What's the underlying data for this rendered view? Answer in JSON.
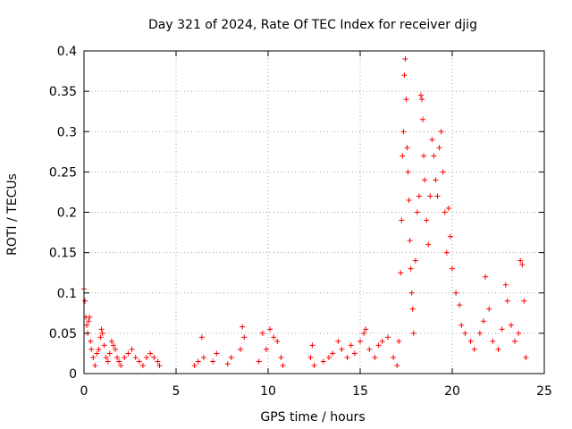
{
  "chart_data": {
    "type": "scatter",
    "title": "Day 321 of 2024, Rate Of TEC Index for receiver djig",
    "xlabel": "GPS time / hours",
    "ylabel": "ROTI / TECUs",
    "xlim": [
      0,
      25
    ],
    "ylim": [
      0,
      0.4
    ],
    "xticks": [
      0,
      5,
      10,
      15,
      20,
      25
    ],
    "yticks": [
      0,
      0.05,
      0.1,
      0.15,
      0.2,
      0.25,
      0.3,
      0.35,
      0.4
    ],
    "xtick_labels": [
      "0",
      "5",
      "10",
      "15",
      "20",
      "25"
    ],
    "ytick_labels": [
      "0",
      "0.05",
      "0.1",
      "0.15",
      "0.2",
      "0.25",
      "0.3",
      "0.35",
      "0.4"
    ],
    "grid": true,
    "marker": "+",
    "color": "#ff0000",
    "series": [
      {
        "name": "ROTI",
        "points": [
          [
            0.0,
            0.105
          ],
          [
            0.05,
            0.09
          ],
          [
            0.1,
            0.07
          ],
          [
            0.15,
            0.06
          ],
          [
            0.2,
            0.05
          ],
          [
            0.25,
            0.065
          ],
          [
            0.3,
            0.07
          ],
          [
            0.35,
            0.04
          ],
          [
            0.4,
            0.03
          ],
          [
            0.5,
            0.02
          ],
          [
            0.6,
            0.01
          ],
          [
            0.7,
            0.025
          ],
          [
            0.8,
            0.03
          ],
          [
            0.9,
            0.045
          ],
          [
            0.95,
            0.055
          ],
          [
            1.0,
            0.05
          ],
          [
            1.1,
            0.035
          ],
          [
            1.2,
            0.02
          ],
          [
            1.3,
            0.015
          ],
          [
            1.4,
            0.025
          ],
          [
            1.5,
            0.04
          ],
          [
            1.6,
            0.035
          ],
          [
            1.7,
            0.03
          ],
          [
            1.8,
            0.02
          ],
          [
            1.9,
            0.015
          ],
          [
            2.0,
            0.01
          ],
          [
            2.2,
            0.02
          ],
          [
            2.4,
            0.025
          ],
          [
            2.6,
            0.03
          ],
          [
            2.8,
            0.02
          ],
          [
            3.0,
            0.015
          ],
          [
            3.2,
            0.01
          ],
          [
            3.4,
            0.02
          ],
          [
            3.6,
            0.025
          ],
          [
            3.8,
            0.02
          ],
          [
            4.0,
            0.015
          ],
          [
            4.1,
            0.01
          ],
          [
            6.0,
            0.01
          ],
          [
            6.2,
            0.015
          ],
          [
            6.4,
            0.045
          ],
          [
            6.5,
            0.02
          ],
          [
            7.0,
            0.015
          ],
          [
            7.2,
            0.025
          ],
          [
            7.8,
            0.012
          ],
          [
            8.0,
            0.02
          ],
          [
            8.5,
            0.03
          ],
          [
            8.6,
            0.058
          ],
          [
            8.7,
            0.045
          ],
          [
            9.5,
            0.015
          ],
          [
            9.7,
            0.05
          ],
          [
            9.9,
            0.03
          ],
          [
            10.1,
            0.055
          ],
          [
            10.3,
            0.045
          ],
          [
            10.5,
            0.04
          ],
          [
            10.7,
            0.02
          ],
          [
            10.8,
            0.01
          ],
          [
            12.3,
            0.02
          ],
          [
            12.4,
            0.035
          ],
          [
            12.5,
            0.01
          ],
          [
            13.0,
            0.015
          ],
          [
            13.3,
            0.02
          ],
          [
            13.5,
            0.025
          ],
          [
            13.8,
            0.04
          ],
          [
            14.0,
            0.03
          ],
          [
            14.3,
            0.02
          ],
          [
            14.5,
            0.035
          ],
          [
            14.7,
            0.025
          ],
          [
            15.0,
            0.04
          ],
          [
            15.2,
            0.05
          ],
          [
            15.3,
            0.055
          ],
          [
            15.5,
            0.03
          ],
          [
            15.8,
            0.02
          ],
          [
            16.0,
            0.035
          ],
          [
            16.2,
            0.04
          ],
          [
            16.5,
            0.045
          ],
          [
            16.8,
            0.02
          ],
          [
            17.0,
            0.01
          ],
          [
            17.1,
            0.04
          ],
          [
            17.2,
            0.125
          ],
          [
            17.25,
            0.19
          ],
          [
            17.3,
            0.27
          ],
          [
            17.35,
            0.3
          ],
          [
            17.4,
            0.37
          ],
          [
            17.45,
            0.39
          ],
          [
            17.5,
            0.34
          ],
          [
            17.55,
            0.28
          ],
          [
            17.6,
            0.25
          ],
          [
            17.65,
            0.215
          ],
          [
            17.7,
            0.165
          ],
          [
            17.75,
            0.13
          ],
          [
            17.8,
            0.1
          ],
          [
            17.85,
            0.08
          ],
          [
            17.9,
            0.05
          ],
          [
            18.0,
            0.14
          ],
          [
            18.1,
            0.2
          ],
          [
            18.2,
            0.22
          ],
          [
            18.3,
            0.345
          ],
          [
            18.35,
            0.34
          ],
          [
            18.4,
            0.315
          ],
          [
            18.45,
            0.27
          ],
          [
            18.5,
            0.24
          ],
          [
            18.6,
            0.19
          ],
          [
            18.7,
            0.16
          ],
          [
            18.8,
            0.22
          ],
          [
            18.9,
            0.29
          ],
          [
            19.0,
            0.27
          ],
          [
            19.1,
            0.24
          ],
          [
            19.2,
            0.22
          ],
          [
            19.3,
            0.28
          ],
          [
            19.4,
            0.3
          ],
          [
            19.5,
            0.25
          ],
          [
            19.6,
            0.2
          ],
          [
            19.7,
            0.15
          ],
          [
            19.8,
            0.205
          ],
          [
            19.9,
            0.17
          ],
          [
            20.0,
            0.13
          ],
          [
            20.2,
            0.1
          ],
          [
            20.4,
            0.085
          ],
          [
            20.5,
            0.06
          ],
          [
            20.7,
            0.05
          ],
          [
            21.0,
            0.04
          ],
          [
            21.2,
            0.03
          ],
          [
            21.5,
            0.05
          ],
          [
            21.7,
            0.065
          ],
          [
            21.8,
            0.12
          ],
          [
            22.0,
            0.08
          ],
          [
            22.2,
            0.04
          ],
          [
            22.5,
            0.03
          ],
          [
            22.7,
            0.055
          ],
          [
            22.9,
            0.11
          ],
          [
            23.0,
            0.09
          ],
          [
            23.2,
            0.06
          ],
          [
            23.4,
            0.04
          ],
          [
            23.6,
            0.05
          ],
          [
            23.7,
            0.14
          ],
          [
            23.8,
            0.135
          ],
          [
            23.9,
            0.09
          ],
          [
            24.0,
            0.02
          ]
        ]
      }
    ]
  }
}
